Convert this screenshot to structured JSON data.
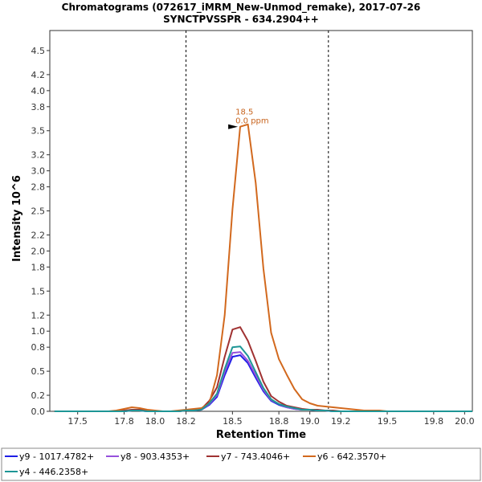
{
  "chart_data": {
    "type": "line",
    "title": "Chromatograms (072617_iMRM_New-Unmod_remake), 2017-07-26",
    "subtitle": "SYNCTPVSSPR - 634.2904++",
    "xlabel": "Retention Time",
    "ylabel": "Intensity 10^6",
    "xlim": [
      17.32,
      20.05
    ],
    "ylim": [
      0,
      4.75
    ],
    "x_ticks": [
      "17.5",
      "17.8",
      "18.0",
      "18.2",
      "18.5",
      "18.8",
      "19.0",
      "19.2",
      "19.5",
      "19.8",
      "20.0"
    ],
    "y_ticks": [
      "0.0",
      "0.2",
      "0.5",
      "0.8",
      "1.0",
      "1.2",
      "1.5",
      "1.8",
      "2.0",
      "2.2",
      "2.5",
      "2.8",
      "3.0",
      "3.2",
      "3.5",
      "3.8",
      "4.0",
      "4.2",
      "4.5"
    ],
    "boundaries": [
      18.2,
      19.12
    ],
    "grid": false,
    "legend_position": "bottom",
    "annotation": {
      "x": 18.53,
      "y": 3.55,
      "line1": "18.5",
      "line2": "0.0 ppm",
      "color": "#c8641e"
    },
    "x": [
      17.35,
      17.4,
      17.45,
      17.5,
      17.55,
      17.6,
      17.65,
      17.7,
      17.75,
      17.8,
      17.85,
      17.9,
      17.95,
      18.0,
      18.05,
      18.1,
      18.15,
      18.2,
      18.25,
      18.3,
      18.35,
      18.4,
      18.45,
      18.5,
      18.55,
      18.6,
      18.65,
      18.7,
      18.75,
      18.8,
      18.85,
      18.9,
      18.95,
      19.0,
      19.05,
      19.1,
      19.15,
      19.2,
      19.25,
      19.3,
      19.35,
      19.4,
      19.45,
      19.5,
      19.55,
      19.6,
      19.65,
      19.7,
      19.75,
      19.8,
      19.85,
      19.9,
      19.95,
      20.0,
      20.05
    ],
    "series": [
      {
        "name": "y9 - 1017.4782+",
        "color": "#1e1ee6",
        "values": [
          0,
          0,
          0,
          0,
          0,
          0,
          0,
          0,
          0,
          0,
          0.01,
          0.01,
          0,
          0,
          0,
          0,
          0,
          0.01,
          0.01,
          0.02,
          0.08,
          0.18,
          0.45,
          0.68,
          0.7,
          0.6,
          0.42,
          0.25,
          0.13,
          0.08,
          0.05,
          0.03,
          0.02,
          0.02,
          0.01,
          0.01,
          0,
          0,
          0,
          0,
          0,
          0,
          0,
          0,
          0,
          0,
          0,
          0,
          0,
          0,
          0,
          0,
          0,
          0,
          0
        ]
      },
      {
        "name": "y8 - 903.4353+",
        "color": "#9650dc",
        "values": [
          0,
          0,
          0,
          0,
          0,
          0,
          0,
          0,
          0,
          0,
          0.01,
          0.01,
          0,
          0,
          0,
          0,
          0,
          0.01,
          0.01,
          0.02,
          0.09,
          0.2,
          0.49,
          0.73,
          0.74,
          0.63,
          0.45,
          0.27,
          0.14,
          0.09,
          0.05,
          0.03,
          0.02,
          0.02,
          0.01,
          0.01,
          0,
          0,
          0,
          0,
          0,
          0,
          0,
          0,
          0,
          0,
          0,
          0,
          0,
          0,
          0,
          0,
          0,
          0,
          0
        ]
      },
      {
        "name": "y7 - 743.4046+",
        "color": "#a03232",
        "values": [
          0,
          0,
          0,
          0,
          0,
          0,
          0,
          0,
          0,
          0.01,
          0.02,
          0.02,
          0.01,
          0,
          0,
          0,
          0,
          0.01,
          0.01,
          0.03,
          0.13,
          0.3,
          0.68,
          1.02,
          1.05,
          0.88,
          0.63,
          0.37,
          0.19,
          0.12,
          0.07,
          0.05,
          0.03,
          0.02,
          0.02,
          0.01,
          0.01,
          0,
          0,
          0,
          0,
          0,
          0,
          0,
          0,
          0,
          0,
          0,
          0,
          0,
          0,
          0,
          0,
          0,
          0
        ]
      },
      {
        "name": "y6 - 642.3570+",
        "color": "#d2691e",
        "values": [
          0,
          0,
          0,
          0,
          0,
          0,
          0,
          0,
          0.01,
          0.03,
          0.05,
          0.04,
          0.02,
          0.01,
          0,
          0,
          0.01,
          0.02,
          0.03,
          0.04,
          0.1,
          0.45,
          1.2,
          2.52,
          3.55,
          3.58,
          2.85,
          1.78,
          0.98,
          0.65,
          0.46,
          0.28,
          0.15,
          0.1,
          0.07,
          0.06,
          0.05,
          0.04,
          0.03,
          0.02,
          0.01,
          0.01,
          0.01,
          0,
          0,
          0,
          0,
          0,
          0,
          0,
          0,
          0,
          0,
          0,
          0
        ]
      },
      {
        "name": "y4 - 446.2358+",
        "color": "#1e9696",
        "values": [
          0,
          0,
          0,
          0,
          0,
          0,
          0,
          0,
          0,
          0,
          0.01,
          0.01,
          0,
          0,
          0,
          0,
          0,
          0.01,
          0.01,
          0.02,
          0.1,
          0.22,
          0.53,
          0.8,
          0.81,
          0.69,
          0.49,
          0.29,
          0.15,
          0.09,
          0.06,
          0.04,
          0.02,
          0.02,
          0.01,
          0.01,
          0,
          0,
          0,
          0,
          0,
          0,
          0,
          0,
          0,
          0,
          0,
          0,
          0,
          0,
          0,
          0,
          0,
          0,
          0
        ]
      }
    ]
  }
}
